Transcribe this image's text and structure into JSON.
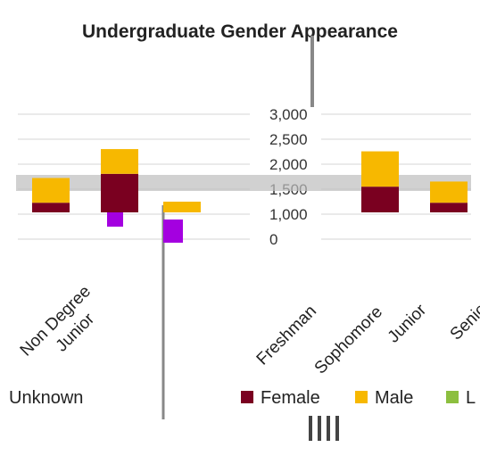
{
  "chart_data": {
    "type": "bar",
    "stacked": true,
    "title": "Undergraduate Gender Appearance",
    "categories": [
      "Unknown",
      "Junior",
      "Non Degree",
      "Freshman",
      "Sophomore",
      "Junior",
      "Senior"
    ],
    "yticks": [
      "0",
      "1,000",
      "1,500",
      "2,000",
      "2,500",
      "3,000"
    ],
    "ylim": [
      0,
      3000
    ],
    "series": [
      {
        "name": "Unknown",
        "color": "#a400e0",
        "values": [
          0,
          0,
          0,
          0,
          0,
          0,
          0
        ]
      },
      {
        "name": "Female",
        "color": "#7a0020",
        "values": [
          0,
          300,
          1200,
          0,
          800,
          0,
          300
        ]
      },
      {
        "name": "Male",
        "color": "#f7b800",
        "values": [
          0,
          1400,
          1400,
          0,
          2000,
          0,
          1200
        ]
      },
      {
        "name": "L",
        "color": "#8cbf3f",
        "values": [
          0,
          0,
          0,
          0,
          0,
          0,
          0
        ]
      }
    ],
    "legend": {
      "position": "bottom"
    }
  }
}
